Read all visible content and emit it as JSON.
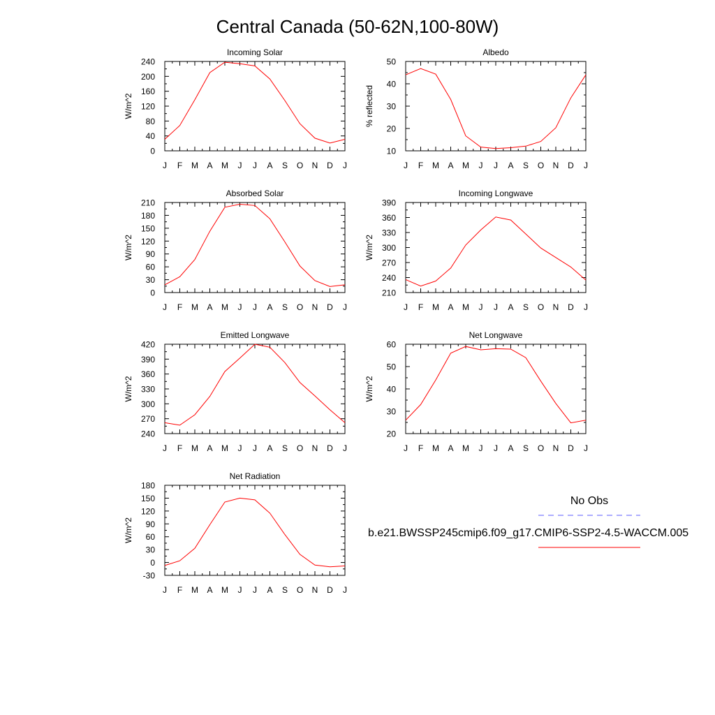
{
  "figure": {
    "title": "Central Canada (50-62N,100-80W)",
    "legend": {
      "obs_label": "No Obs",
      "model_label": "b.e21.BWSSP245cmip6.f09_g17.CMIP6-SSP2-4.5-WACCM.005",
      "obs_color": "#5a5aff",
      "model_color": "#ff0000"
    }
  },
  "chart_data": [
    {
      "type": "line",
      "title": "Incoming Solar",
      "ylabel": "W/m^2",
      "categories": [
        "J",
        "F",
        "M",
        "A",
        "M",
        "J",
        "J",
        "A",
        "S",
        "O",
        "N",
        "D",
        "J"
      ],
      "yticks": [
        0,
        40,
        80,
        120,
        160,
        200,
        240
      ],
      "ylim": [
        0,
        240
      ],
      "series": [
        {
          "values": [
            31,
            68,
            137,
            210,
            238,
            234,
            228,
            193,
            135,
            73,
            34,
            21,
            31
          ]
        }
      ]
    },
    {
      "type": "line",
      "title": "Albedo",
      "ylabel": "% reflected",
      "categories": [
        "J",
        "F",
        "M",
        "A",
        "M",
        "J",
        "J",
        "A",
        "S",
        "O",
        "N",
        "D",
        "J"
      ],
      "yticks": [
        10,
        20,
        30,
        40,
        50
      ],
      "ylim": [
        10,
        50
      ],
      "series": [
        {
          "values": [
            44,
            46.8,
            44.3,
            33,
            16.7,
            11.7,
            11,
            11.4,
            12.1,
            14.2,
            20.3,
            33.7,
            44
          ]
        }
      ]
    },
    {
      "type": "line",
      "title": "Absorbed Solar",
      "ylabel": "W/m^2",
      "categories": [
        "J",
        "F",
        "M",
        "A",
        "M",
        "J",
        "J",
        "A",
        "S",
        "O",
        "N",
        "D",
        "J"
      ],
      "yticks": [
        0,
        30,
        60,
        90,
        120,
        150,
        180,
        210
      ],
      "ylim": [
        0,
        210
      ],
      "series": [
        {
          "values": [
            18,
            37,
            77,
            143,
            199,
            206,
            203,
            172,
            118,
            62,
            28,
            14,
            18
          ]
        }
      ]
    },
    {
      "type": "line",
      "title": "Incoming Longwave",
      "ylabel": "W/m^2",
      "categories": [
        "J",
        "F",
        "M",
        "A",
        "M",
        "J",
        "J",
        "A",
        "S",
        "O",
        "N",
        "D",
        "J"
      ],
      "yticks": [
        210,
        240,
        270,
        300,
        330,
        360,
        390
      ],
      "ylim": [
        210,
        390
      ],
      "series": [
        {
          "values": [
            236,
            223,
            233,
            259,
            305,
            335,
            361,
            355,
            327,
            299,
            280,
            261,
            235
          ]
        }
      ]
    },
    {
      "type": "line",
      "title": "Emitted Longwave",
      "ylabel": "W/m^2",
      "categories": [
        "J",
        "F",
        "M",
        "A",
        "M",
        "J",
        "J",
        "A",
        "S",
        "O",
        "N",
        "D",
        "J"
      ],
      "yticks": [
        240,
        270,
        300,
        330,
        360,
        390,
        420
      ],
      "ylim": [
        240,
        420
      ],
      "series": [
        {
          "values": [
            262,
            257,
            278,
            315,
            365,
            392,
            420,
            414,
            383,
            343,
            316,
            288,
            262
          ]
        }
      ]
    },
    {
      "type": "line",
      "title": "Net Longwave",
      "ylabel": "W/m^2",
      "categories": [
        "J",
        "F",
        "M",
        "A",
        "M",
        "J",
        "J",
        "A",
        "S",
        "O",
        "N",
        "D",
        "J"
      ],
      "yticks": [
        20,
        30,
        40,
        50,
        60
      ],
      "ylim": [
        20,
        60
      ],
      "series": [
        {
          "values": [
            26,
            33,
            44,
            56,
            59,
            57.5,
            58,
            57.8,
            54,
            43.5,
            33.5,
            24.8,
            26
          ]
        }
      ]
    },
    {
      "type": "line",
      "title": "Net Radiation",
      "ylabel": "W/m^2",
      "categories": [
        "J",
        "F",
        "M",
        "A",
        "M",
        "J",
        "J",
        "A",
        "S",
        "O",
        "N",
        "D",
        "J"
      ],
      "yticks": [
        -30,
        0,
        30,
        60,
        90,
        120,
        150,
        180
      ],
      "ylim": [
        -30,
        180
      ],
      "series": [
        {
          "values": [
            -7,
            4,
            33,
            88,
            141,
            150,
            146,
            115,
            65,
            19,
            -6,
            -10,
            -8
          ]
        }
      ]
    }
  ]
}
